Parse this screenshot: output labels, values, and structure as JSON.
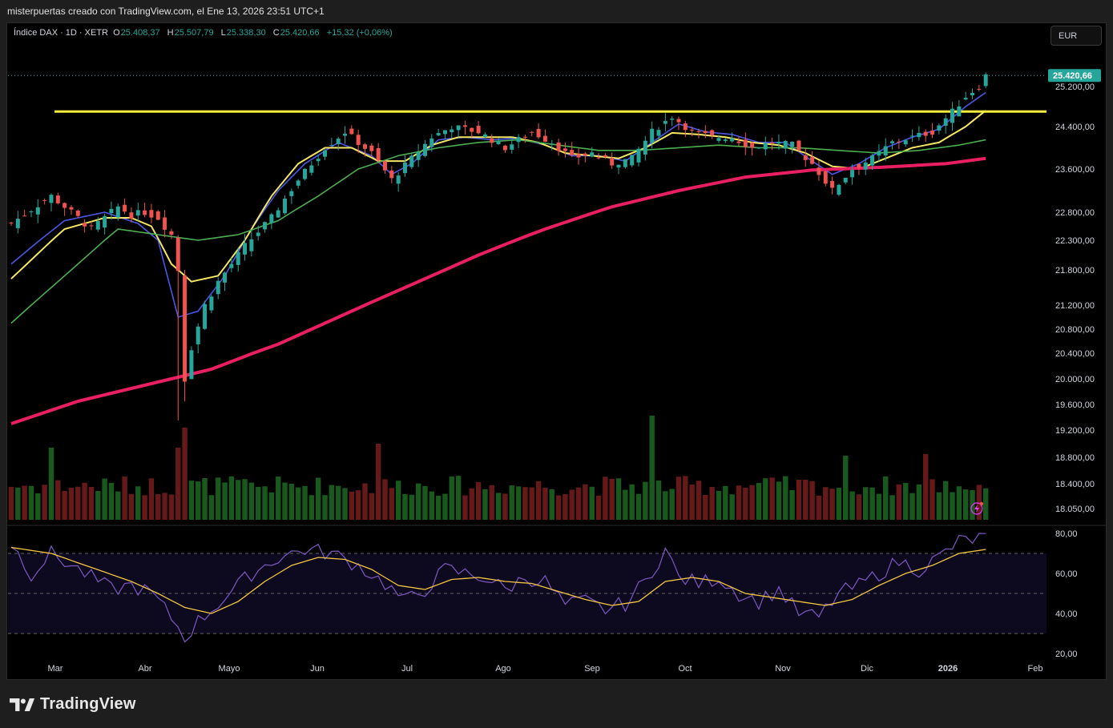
{
  "header": {
    "credit": "misterpuertas creado con TradingView.com, el Ene 13, 2026 23:51 UTC+1"
  },
  "legend": {
    "symbol": "Índice DAX · 1D · XETR",
    "o_label": "O",
    "o_value": "25.408,37",
    "h_label": "H",
    "h_value": "25.507,79",
    "l_label": "L",
    "l_value": "25.338,30",
    "c_label": "C",
    "c_value": "25.420,66",
    "change": "+15,32 (+0,06%)"
  },
  "currency_button": "EUR",
  "footer": {
    "brand": "TradingView"
  },
  "colors": {
    "up": "#26a69a",
    "down": "#ef5350",
    "ma_fast": "#4a57e6",
    "ma_mid": "#f5e663",
    "ma_slow": "#4caf50",
    "ma_long": "#e91e63",
    "resistance": "#f5ec3b",
    "rsi": "#7e57c2",
    "rsi_ma": "#f5c542",
    "price_tag": "#26a69a"
  },
  "chart_data": [
    {
      "type": "candlestick",
      "name": "Índice DAX · 1D · XETR",
      "currency": "EUR",
      "x_labels": [
        "Mar",
        "Abr",
        "Mayo",
        "Jun",
        "Jul",
        "Ago",
        "Sep",
        "Oct",
        "Nov",
        "Dic",
        "2026",
        "Feb"
      ],
      "y_ticks": [
        "25.200,00",
        "24.400,00",
        "23.600,00",
        "22.800,00",
        "22.300,00",
        "21.800,00",
        "21.200,00",
        "20.800,00",
        "20.400,00",
        "20.000,00",
        "19.600,00",
        "19.200,00",
        "18.800,00",
        "18.400,00",
        "18.050,00"
      ],
      "last_price": "25.420,66",
      "resistance_level": 24700,
      "close_path": [
        [
          0,
          22600
        ],
        [
          6,
          23100
        ],
        [
          12,
          22500
        ],
        [
          16,
          22900
        ],
        [
          18,
          22750
        ],
        [
          20,
          22800
        ],
        [
          22,
          22700
        ],
        [
          24,
          22400
        ],
        [
          25,
          21800
        ],
        [
          26,
          20000
        ],
        [
          27,
          20500
        ],
        [
          29,
          21200
        ],
        [
          31,
          21600
        ],
        [
          35,
          22200
        ],
        [
          39,
          22700
        ],
        [
          43,
          23400
        ],
        [
          47,
          24000
        ],
        [
          50,
          24300
        ],
        [
          54,
          23900
        ],
        [
          57,
          23400
        ],
        [
          60,
          23800
        ],
        [
          63,
          24200
        ],
        [
          66,
          24400
        ],
        [
          70,
          24300
        ],
        [
          74,
          24000
        ],
        [
          78,
          24300
        ],
        [
          81,
          24100
        ],
        [
          84,
          23800
        ],
        [
          87,
          23900
        ],
        [
          90,
          23700
        ],
        [
          93,
          23800
        ],
        [
          96,
          24300
        ],
        [
          99,
          24600
        ],
        [
          102,
          24300
        ],
        [
          105,
          24200
        ],
        [
          108,
          24200
        ],
        [
          111,
          24000
        ],
        [
          114,
          24100
        ],
        [
          117,
          24050
        ],
        [
          120,
          23700
        ],
        [
          123,
          23200
        ],
        [
          126,
          23600
        ],
        [
          129,
          23800
        ],
        [
          132,
          24100
        ],
        [
          135,
          24200
        ],
        [
          138,
          24300
        ],
        [
          141,
          24700
        ],
        [
          143,
          25000
        ],
        [
          145,
          25200
        ],
        [
          146,
          25420
        ]
      ],
      "moving_averages": [
        {
          "name": "MA fast",
          "color": "#4a57e6",
          "points": [
            [
              0,
              21900
            ],
            [
              8,
              22650
            ],
            [
              14,
              22800
            ],
            [
              19,
              22600
            ],
            [
              22,
              22300
            ],
            [
              25,
              21000
            ],
            [
              28,
              21100
            ],
            [
              32,
              21700
            ],
            [
              36,
              22500
            ],
            [
              40,
              23200
            ],
            [
              44,
              23700
            ],
            [
              49,
              24100
            ],
            [
              54,
              23850
            ],
            [
              57,
              23500
            ],
            [
              60,
              23700
            ],
            [
              64,
              24150
            ],
            [
              68,
              24200
            ],
            [
              72,
              24150
            ],
            [
              76,
              24180
            ],
            [
              80,
              24050
            ],
            [
              84,
              23850
            ],
            [
              88,
              23850
            ],
            [
              92,
              23750
            ],
            [
              96,
              24100
            ],
            [
              100,
              24450
            ],
            [
              104,
              24300
            ],
            [
              108,
              24250
            ],
            [
              112,
              24100
            ],
            [
              116,
              24100
            ],
            [
              120,
              23750
            ],
            [
              123,
              23500
            ],
            [
              127,
              23700
            ],
            [
              131,
              24000
            ],
            [
              135,
              24200
            ],
            [
              139,
              24350
            ],
            [
              143,
              24800
            ],
            [
              146,
              25080
            ]
          ]
        },
        {
          "name": "MA mid",
          "color": "#f5e663",
          "points": [
            [
              0,
              21650
            ],
            [
              8,
              22500
            ],
            [
              14,
              22700
            ],
            [
              18,
              22700
            ],
            [
              21,
              22550
            ],
            [
              24,
              21900
            ],
            [
              27,
              21600
            ],
            [
              31,
              21700
            ],
            [
              35,
              22300
            ],
            [
              39,
              23100
            ],
            [
              43,
              23700
            ],
            [
              47,
              24000
            ],
            [
              51,
              24000
            ],
            [
              55,
              23750
            ],
            [
              59,
              23750
            ],
            [
              63,
              24050
            ],
            [
              67,
              24200
            ],
            [
              71,
              24200
            ],
            [
              75,
              24200
            ],
            [
              79,
              24100
            ],
            [
              83,
              23900
            ],
            [
              87,
              23850
            ],
            [
              91,
              23800
            ],
            [
              95,
              24000
            ],
            [
              99,
              24280
            ],
            [
              103,
              24250
            ],
            [
              107,
              24200
            ],
            [
              111,
              24100
            ],
            [
              115,
              24050
            ],
            [
              119,
              23900
            ],
            [
              123,
              23650
            ],
            [
              127,
              23600
            ],
            [
              131,
              23800
            ],
            [
              135,
              24000
            ],
            [
              139,
              24100
            ],
            [
              143,
              24400
            ],
            [
              146,
              24720
            ]
          ]
        },
        {
          "name": "MA slow",
          "color": "#4caf50",
          "points": [
            [
              0,
              20900
            ],
            [
              10,
              21900
            ],
            [
              16,
              22500
            ],
            [
              22,
              22400
            ],
            [
              28,
              22300
            ],
            [
              34,
              22400
            ],
            [
              40,
              22650
            ],
            [
              46,
              23100
            ],
            [
              52,
              23600
            ],
            [
              58,
              23850
            ],
            [
              64,
              24000
            ],
            [
              70,
              24100
            ],
            [
              76,
              24150
            ],
            [
              82,
              24050
            ],
            [
              88,
              23950
            ],
            [
              94,
              23950
            ],
            [
              100,
              24000
            ],
            [
              106,
              24050
            ],
            [
              112,
              24000
            ],
            [
              118,
              24000
            ],
            [
              124,
              23950
            ],
            [
              130,
              23900
            ],
            [
              136,
              23950
            ],
            [
              142,
              24050
            ],
            [
              146,
              24150
            ]
          ]
        },
        {
          "name": "MA long",
          "color": "#e91e63",
          "points": [
            [
              0,
              19300
            ],
            [
              10,
              19650
            ],
            [
              20,
              19900
            ],
            [
              30,
              20150
            ],
            [
              40,
              20550
            ],
            [
              50,
              21050
            ],
            [
              60,
              21550
            ],
            [
              70,
              22050
            ],
            [
              80,
              22500
            ],
            [
              90,
              22900
            ],
            [
              100,
              23200
            ],
            [
              110,
              23450
            ],
            [
              120,
              23580
            ],
            [
              130,
              23630
            ],
            [
              140,
              23700
            ],
            [
              146,
              23800
            ]
          ]
        }
      ]
    },
    {
      "type": "area",
      "name": "RSI",
      "y_ticks": [
        "80,00",
        "60,00",
        "40,00",
        "20,00"
      ],
      "bands": [
        70,
        50,
        30
      ],
      "rsi_points": [
        [
          0,
          75
        ],
        [
          3,
          60
        ],
        [
          6,
          70
        ],
        [
          9,
          64
        ],
        [
          12,
          58
        ],
        [
          15,
          52
        ],
        [
          18,
          54
        ],
        [
          21,
          50
        ],
        [
          24,
          38
        ],
        [
          26,
          28
        ],
        [
          28,
          36
        ],
        [
          32,
          48
        ],
        [
          36,
          60
        ],
        [
          40,
          68
        ],
        [
          44,
          72
        ],
        [
          48,
          70
        ],
        [
          52,
          64
        ],
        [
          56,
          55
        ],
        [
          59,
          46
        ],
        [
          62,
          52
        ],
        [
          65,
          62
        ],
        [
          68,
          60
        ],
        [
          71,
          58
        ],
        [
          74,
          52
        ],
        [
          77,
          58
        ],
        [
          80,
          56
        ],
        [
          83,
          44
        ],
        [
          86,
          46
        ],
        [
          89,
          42
        ],
        [
          92,
          45
        ],
        [
          95,
          56
        ],
        [
          98,
          72
        ],
        [
          100,
          58
        ],
        [
          103,
          55
        ],
        [
          106,
          58
        ],
        [
          109,
          50
        ],
        [
          112,
          46
        ],
        [
          115,
          52
        ],
        [
          118,
          40
        ],
        [
          121,
          38
        ],
        [
          124,
          50
        ],
        [
          127,
          54
        ],
        [
          130,
          60
        ],
        [
          133,
          66
        ],
        [
          136,
          62
        ],
        [
          139,
          68
        ],
        [
          142,
          76
        ],
        [
          146,
          78
        ]
      ],
      "rsi_ma_points": [
        [
          0,
          73
        ],
        [
          6,
          70
        ],
        [
          12,
          63
        ],
        [
          18,
          56
        ],
        [
          22,
          50
        ],
        [
          26,
          43
        ],
        [
          30,
          40
        ],
        [
          34,
          46
        ],
        [
          38,
          56
        ],
        [
          42,
          64
        ],
        [
          46,
          68
        ],
        [
          50,
          67
        ],
        [
          54,
          62
        ],
        [
          58,
          54
        ],
        [
          62,
          52
        ],
        [
          66,
          57
        ],
        [
          70,
          58
        ],
        [
          74,
          56
        ],
        [
          78,
          55
        ],
        [
          82,
          51
        ],
        [
          86,
          47
        ],
        [
          90,
          44
        ],
        [
          94,
          46
        ],
        [
          98,
          56
        ],
        [
          102,
          58
        ],
        [
          106,
          56
        ],
        [
          110,
          50
        ],
        [
          114,
          48
        ],
        [
          118,
          46
        ],
        [
          122,
          44
        ],
        [
          126,
          47
        ],
        [
          130,
          54
        ],
        [
          134,
          60
        ],
        [
          138,
          64
        ],
        [
          142,
          70
        ],
        [
          146,
          72
        ]
      ]
    }
  ]
}
